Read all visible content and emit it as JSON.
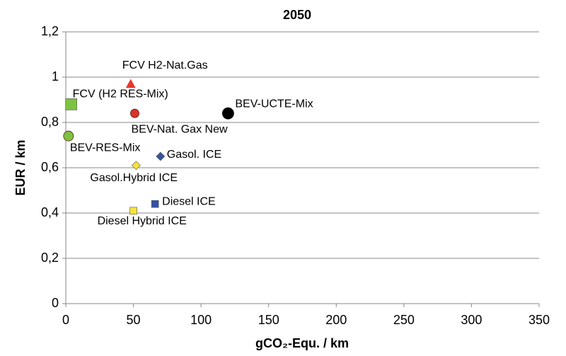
{
  "chart_data": {
    "type": "scatter",
    "title": "2050",
    "x_label": "gCO₂-Equ. / km",
    "y_label": "EUR / km",
    "xlim": [
      0,
      350
    ],
    "xticks": [
      0,
      50,
      100,
      150,
      200,
      250,
      300,
      350
    ],
    "ylim": [
      0,
      1.2
    ],
    "yticks": [
      0,
      {
        "value": 0.2,
        "label": "0,2"
      },
      {
        "value": 0.4,
        "label": "0,4"
      },
      {
        "value": 0.6,
        "label": "0,6"
      },
      {
        "value": 0.8,
        "label": "0,8"
      },
      1,
      {
        "value": 1.2,
        "label": "1,2"
      }
    ],
    "grid": true,
    "series": [
      {
        "name": "FCV H2-Nat.Gas",
        "color": "#e8352a",
        "marker": "triangle",
        "x": [
          48
        ],
        "values": [
          0.97
        ]
      },
      {
        "name": "FCV (H2 RES-Mix)",
        "color": "#7dc242",
        "marker": "square",
        "x": [
          4
        ],
        "values": [
          0.88
        ]
      },
      {
        "name": "BEV-Nat. Gax New",
        "color": "#d9342b",
        "marker": "circle",
        "x": [
          51
        ],
        "values": [
          0.84
        ]
      },
      {
        "name": "BEV-UCTE-Mix",
        "color": "#000000",
        "marker": "circle",
        "x": [
          120
        ],
        "values": [
          0.84
        ]
      },
      {
        "name": "BEV-RES-Mix",
        "color": "#7dc242",
        "marker": "circle",
        "x": [
          2
        ],
        "values": [
          0.74
        ]
      },
      {
        "name": "Gasol. ICE",
        "color": "#3452a4",
        "marker": "diamond",
        "x": [
          70
        ],
        "values": [
          0.65
        ]
      },
      {
        "name": "Gasol.Hybrid ICE",
        "color": "#f4e33c",
        "marker": "diamond",
        "x": [
          52
        ],
        "values": [
          0.61
        ]
      },
      {
        "name": "Diesel ICE",
        "color": "#3452a4",
        "marker": "square",
        "x": [
          66
        ],
        "values": [
          0.44
        ]
      },
      {
        "name": "Diesel Hybrid ICE",
        "color": "#f4e33c",
        "marker": "square",
        "x": [
          50
        ],
        "values": [
          0.41
        ]
      }
    ]
  }
}
